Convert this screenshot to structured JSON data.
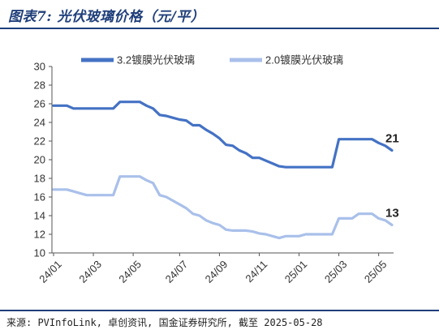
{
  "header": {
    "title": "图表7: 光伏玻璃价格（元/平）"
  },
  "footer": {
    "source": "来源: PVInfoLink, 卓创资讯, 国金证券研究所, 截至 2025-05-28"
  },
  "colors": {
    "series_3_2": "#4472c4",
    "series_2_0": "#a9c0ea",
    "axis": "#555555",
    "rule": "#1f3f7a"
  },
  "chart_data": {
    "type": "line",
    "title": "",
    "xlabel": "",
    "ylabel": "",
    "ylim": [
      10,
      30
    ],
    "yticks": [
      10,
      12,
      14,
      16,
      18,
      20,
      22,
      24,
      26,
      28,
      30
    ],
    "grid": false,
    "legend_position": "top",
    "x": [
      "24/01",
      "24/01",
      "24/01",
      "24/02",
      "24/02",
      "24/02",
      "24/03",
      "24/03",
      "24/03",
      "24/04",
      "24/04",
      "24/04",
      "24/05",
      "24/05",
      "24/05",
      "24/05",
      "24/06",
      "24/06",
      "24/06",
      "24/07",
      "24/07",
      "24/07",
      "24/08",
      "24/08",
      "24/08",
      "24/09",
      "24/09",
      "24/09",
      "24/10",
      "24/10",
      "24/10",
      "24/11",
      "24/11",
      "24/11",
      "24/12",
      "24/12",
      "24/12",
      "25/01",
      "25/01",
      "25/01",
      "25/02",
      "25/02",
      "25/02",
      "25/03",
      "25/03",
      "25/03",
      "25/04",
      "25/04",
      "25/04",
      "25/05",
      "25/05",
      "25/05"
    ],
    "xticks": [
      "24/01",
      "24/03",
      "24/05",
      "24/07",
      "24/09",
      "24/11",
      "25/01",
      "25/03",
      "25/05"
    ],
    "series": [
      {
        "name": "3.2镀膜光伏玻璃",
        "values": [
          25.8,
          25.8,
          25.8,
          25.5,
          25.5,
          25.5,
          25.5,
          25.5,
          25.5,
          25.5,
          26.2,
          26.2,
          26.2,
          26.2,
          25.8,
          25.5,
          24.8,
          24.7,
          24.5,
          24.3,
          24.2,
          23.7,
          23.7,
          23.2,
          22.8,
          22.3,
          21.6,
          21.5,
          21.0,
          20.7,
          20.2,
          20.2,
          19.9,
          19.6,
          19.3,
          19.2,
          19.2,
          19.2,
          19.2,
          19.2,
          19.2,
          19.2,
          19.2,
          22.2,
          22.2,
          22.2,
          22.2,
          22.2,
          22.2,
          21.8,
          21.5,
          21.0
        ],
        "end_label": "21"
      },
      {
        "name": "2.0镀膜光伏玻璃",
        "values": [
          16.8,
          16.8,
          16.8,
          16.6,
          16.4,
          16.2,
          16.2,
          16.2,
          16.2,
          16.2,
          18.2,
          18.2,
          18.2,
          18.2,
          17.8,
          17.5,
          16.2,
          16.0,
          15.6,
          15.2,
          14.8,
          14.2,
          14.0,
          13.5,
          13.2,
          13.0,
          12.5,
          12.4,
          12.4,
          12.4,
          12.3,
          12.1,
          12.0,
          11.8,
          11.6,
          11.8,
          11.8,
          11.8,
          12.0,
          12.0,
          12.0,
          12.0,
          12.0,
          13.7,
          13.7,
          13.7,
          14.2,
          14.2,
          14.2,
          13.7,
          13.5,
          13.0
        ],
        "end_label": "13"
      }
    ]
  }
}
